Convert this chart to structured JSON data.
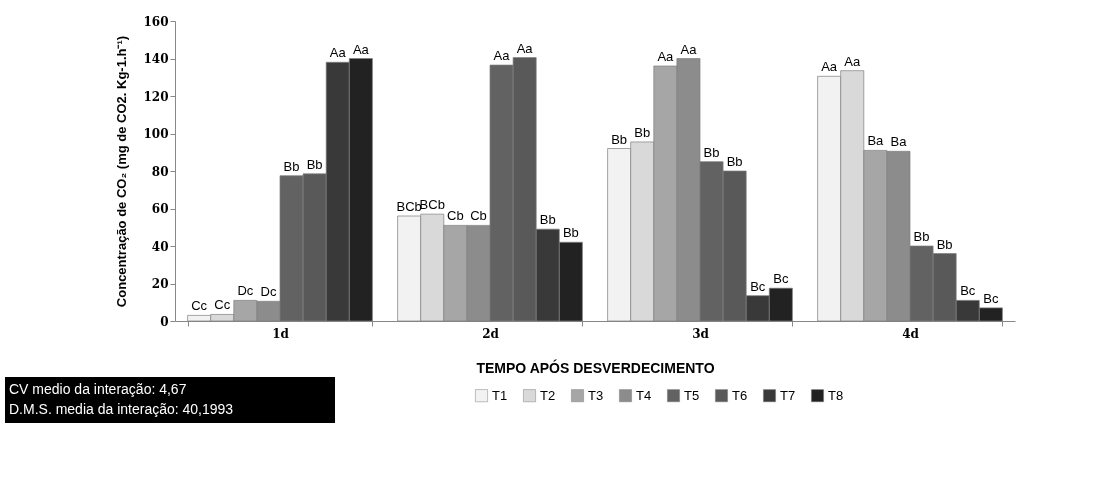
{
  "chart_data": {
    "type": "bar",
    "xlabel": "TEMPO APÓS DESVERDECIMENTO",
    "ylabel": "Concentração de CO₂ (mg de CO2. Kg-1.h⁻¹)",
    "categories": [
      "1d",
      "2d",
      "3d",
      "4d"
    ],
    "series": [
      {
        "name": "T1",
        "color": "#f2f2f2",
        "values": [
          3,
          56,
          92,
          130.5
        ],
        "value_labels": [
          "Cc",
          "BCb",
          "Bb",
          "Aa"
        ]
      },
      {
        "name": "T2",
        "color": "#d9d9d9",
        "values": [
          3.5,
          57,
          95.5,
          133.5
        ],
        "value_labels": [
          "Cc",
          "BCb",
          "Bb",
          "Aa"
        ]
      },
      {
        "name": "T3",
        "color": "#a6a6a6",
        "values": [
          11,
          51,
          136,
          91
        ],
        "value_labels": [
          "Dc",
          "Cb",
          "Aa",
          "Ba"
        ]
      },
      {
        "name": "T4",
        "color": "#8c8c8c",
        "values": [
          10.5,
          51,
          140,
          90.5
        ],
        "value_labels": [
          "Dc",
          "Cb",
          "Aa",
          "Ba"
        ]
      },
      {
        "name": "T5",
        "color": "#626262",
        "values": [
          77.5,
          136.5,
          85,
          40
        ],
        "value_labels": [
          "Bb",
          "Aa",
          "Bb",
          "Bb"
        ]
      },
      {
        "name": "T6",
        "color": "#595959",
        "values": [
          78.5,
          140.5,
          80,
          36
        ],
        "value_labels": [
          "Bb",
          "Aa",
          "Bb",
          "Bb"
        ]
      },
      {
        "name": "T7",
        "color": "#393939",
        "values": [
          138,
          49,
          13.5,
          11
        ],
        "value_labels": [
          "Aa",
          "Bb",
          "Bc",
          "Bc"
        ]
      },
      {
        "name": "T8",
        "color": "#222222",
        "values": [
          140,
          42,
          17.5,
          7
        ],
        "value_labels": [
          "Aa",
          "Bb",
          "Bc",
          "Bc"
        ]
      }
    ],
    "ylim": [
      0,
      160
    ],
    "yticks": [
      0,
      20,
      40,
      60,
      80,
      100,
      120,
      140,
      160
    ],
    "grid": false,
    "legend": "bottom",
    "annotations": [
      "CV medio da interação: 4,67",
      "D.M.S. media da interação: 40,1993"
    ]
  }
}
